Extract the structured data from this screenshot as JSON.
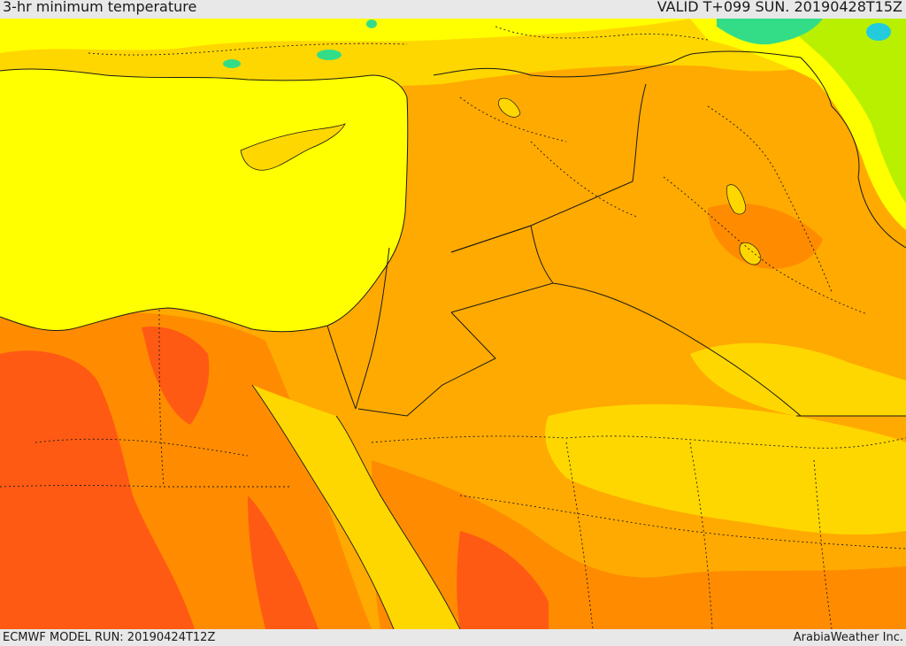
{
  "header": {
    "title": "3-hr minimum temperature",
    "valid": "VALID T+099 SUN. 20190428T15Z"
  },
  "footer": {
    "model_run": "ECMWF MODEL RUN: 20190424T12Z",
    "credit": "ArabiaWeather Inc."
  },
  "map": {
    "colors": {
      "sea": "#ffff00",
      "warm_light": "#ffd700",
      "warm_mid": "#ffaa00",
      "warm_high": "#ff8c00",
      "hot": "#ff5a14",
      "cool_green": "#b8f000",
      "cold_teal": "#33dd88",
      "cold_cyan": "#22ccdd"
    }
  }
}
